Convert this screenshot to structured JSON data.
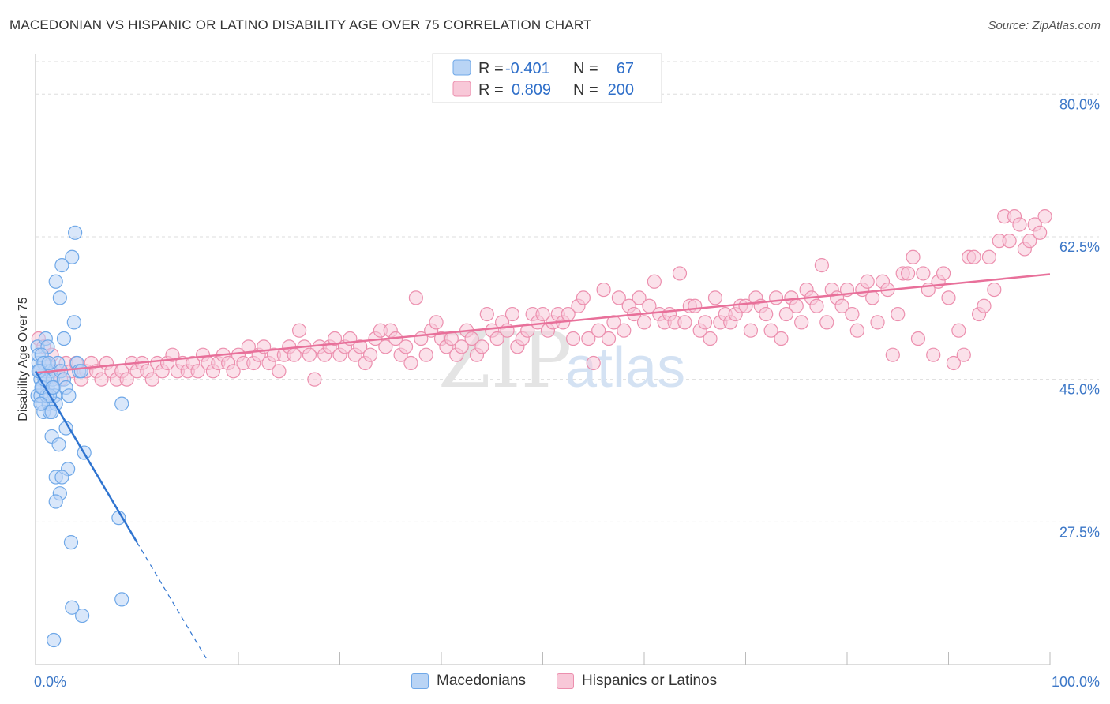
{
  "title": "MACEDONIAN VS HISPANIC OR LATINO DISABILITY AGE OVER 75 CORRELATION CHART",
  "source": "Source: ZipAtlas.com",
  "watermark": {
    "zip": "ZIP",
    "atlas": "atlas"
  },
  "chart_data": {
    "type": "scatter",
    "title": "MACEDONIAN VS HISPANIC OR LATINO DISABILITY AGE OVER 75 CORRELATION CHART",
    "xlabel": "",
    "ylabel": "Disability Age Over 75",
    "xlim": [
      0,
      100
    ],
    "ylim": [
      10,
      84
    ],
    "x_tick_labels": [
      "0.0%",
      "100.0%"
    ],
    "y_ticks": [
      27.5,
      45.0,
      62.5,
      80.0
    ],
    "y_tick_labels": [
      "27.5%",
      "45.0%",
      "62.5%",
      "80.0%"
    ],
    "grid": true,
    "legend_position": "top-center",
    "series": [
      {
        "name": "Macedonians",
        "color": "#6fa8e8",
        "fill": "#b9d4f5",
        "r": "-0.401",
        "n": "67",
        "trend": {
          "x": [
            0,
            10
          ],
          "y": [
            46.0,
            25.0
          ],
          "dashed_to": [
            17,
            10.4
          ]
        },
        "points": [
          [
            0.2,
            49
          ],
          [
            0.3,
            47
          ],
          [
            0.4,
            46
          ],
          [
            0.5,
            45
          ],
          [
            0.6,
            44
          ],
          [
            0.2,
            43
          ],
          [
            0.7,
            42
          ],
          [
            0.8,
            41
          ],
          [
            0.3,
            48
          ],
          [
            0.9,
            47
          ],
          [
            1.0,
            46
          ],
          [
            1.1,
            45
          ],
          [
            1.2,
            44
          ],
          [
            0.5,
            43
          ],
          [
            1.3,
            42
          ],
          [
            1.4,
            41
          ],
          [
            1.0,
            50
          ],
          [
            1.2,
            49
          ],
          [
            0.6,
            48
          ],
          [
            0.8,
            47
          ],
          [
            1.5,
            46
          ],
          [
            1.7,
            45
          ],
          [
            1.8,
            44
          ],
          [
            1.9,
            43
          ],
          [
            2.0,
            42
          ],
          [
            1.6,
            41
          ],
          [
            0.4,
            46
          ],
          [
            0.7,
            44
          ],
          [
            1.1,
            43
          ],
          [
            2.2,
            47
          ],
          [
            2.5,
            46
          ],
          [
            2.8,
            45
          ],
          [
            3.0,
            44
          ],
          [
            3.3,
            43
          ],
          [
            2.4,
            55
          ],
          [
            2.0,
            57
          ],
          [
            2.6,
            59
          ],
          [
            3.6,
            60
          ],
          [
            3.8,
            52
          ],
          [
            3.9,
            63
          ],
          [
            2.8,
            50
          ],
          [
            4.1,
            47
          ],
          [
            4.3,
            46
          ],
          [
            4.5,
            46
          ],
          [
            1.6,
            38
          ],
          [
            2.3,
            37
          ],
          [
            3.0,
            39
          ],
          [
            4.8,
            36
          ],
          [
            3.2,
            34
          ],
          [
            2.0,
            33
          ],
          [
            2.6,
            33
          ],
          [
            2.4,
            31
          ],
          [
            2.0,
            30
          ],
          [
            8.5,
            42
          ],
          [
            8.2,
            28
          ],
          [
            3.5,
            25
          ],
          [
            3.6,
            17
          ],
          [
            4.6,
            16
          ],
          [
            8.5,
            18
          ],
          [
            1.8,
            13
          ],
          [
            0.3,
            46
          ],
          [
            0.6,
            44
          ],
          [
            1.4,
            43
          ],
          [
            0.9,
            45
          ],
          [
            1.3,
            47
          ],
          [
            0.5,
            42
          ],
          [
            1.7,
            44
          ]
        ]
      },
      {
        "name": "Hispanics or Latinos",
        "color": "#ec8fae",
        "fill": "#f8c8d8",
        "r": "0.809",
        "n": "200",
        "trend": {
          "x": [
            0,
            100
          ],
          "y": [
            45.8,
            57.9
          ]
        },
        "points": [
          [
            0.3,
            50
          ],
          [
            0.8,
            49
          ],
          [
            1.2,
            47
          ],
          [
            1.6,
            48
          ],
          [
            2.2,
            46
          ],
          [
            2.5,
            45
          ],
          [
            3,
            47
          ],
          [
            3.5,
            46
          ],
          [
            4,
            47
          ],
          [
            4.5,
            45
          ],
          [
            5,
            46
          ],
          [
            5.5,
            47
          ],
          [
            6,
            46
          ],
          [
            6.5,
            45
          ],
          [
            7,
            47
          ],
          [
            7.5,
            46
          ],
          [
            8,
            45
          ],
          [
            8.5,
            46
          ],
          [
            9,
            45
          ],
          [
            9.5,
            47
          ],
          [
            10,
            46
          ],
          [
            10.5,
            47
          ],
          [
            11,
            46
          ],
          [
            11.5,
            45
          ],
          [
            12,
            47
          ],
          [
            12.5,
            46
          ],
          [
            13,
            47
          ],
          [
            13.5,
            48
          ],
          [
            14,
            46
          ],
          [
            14.5,
            47
          ],
          [
            15,
            46
          ],
          [
            15.5,
            47
          ],
          [
            16,
            46
          ],
          [
            16.5,
            48
          ],
          [
            17,
            47
          ],
          [
            17.5,
            46
          ],
          [
            18,
            47
          ],
          [
            18.5,
            48
          ],
          [
            19,
            47
          ],
          [
            19.5,
            46
          ],
          [
            20,
            48
          ],
          [
            20.5,
            47
          ],
          [
            21,
            49
          ],
          [
            21.5,
            47
          ],
          [
            22,
            48
          ],
          [
            22.5,
            49
          ],
          [
            23,
            47
          ],
          [
            23.5,
            48
          ],
          [
            24,
            46
          ],
          [
            24.5,
            48
          ],
          [
            25,
            49
          ],
          [
            25.5,
            48
          ],
          [
            26,
            51
          ],
          [
            26.5,
            49
          ],
          [
            27,
            48
          ],
          [
            27.5,
            45
          ],
          [
            28,
            49
          ],
          [
            28.5,
            48
          ],
          [
            29,
            49
          ],
          [
            29.5,
            50
          ],
          [
            30,
            48
          ],
          [
            30.5,
            49
          ],
          [
            31,
            50
          ],
          [
            31.5,
            48
          ],
          [
            32,
            49
          ],
          [
            32.5,
            47
          ],
          [
            33,
            48
          ],
          [
            33.5,
            50
          ],
          [
            34,
            51
          ],
          [
            34.5,
            49
          ],
          [
            35,
            51
          ],
          [
            35.5,
            50
          ],
          [
            36,
            48
          ],
          [
            36.5,
            49
          ],
          [
            37,
            47
          ],
          [
            37.5,
            55
          ],
          [
            38,
            50
          ],
          [
            38.5,
            48
          ],
          [
            39,
            51
          ],
          [
            39.5,
            52
          ],
          [
            40,
            50
          ],
          [
            40.5,
            49
          ],
          [
            41,
            50
          ],
          [
            41.5,
            48
          ],
          [
            42,
            49
          ],
          [
            42.5,
            51
          ],
          [
            43,
            50
          ],
          [
            43.5,
            48
          ],
          [
            44,
            49
          ],
          [
            44.5,
            53
          ],
          [
            45,
            51
          ],
          [
            45.5,
            50
          ],
          [
            46,
            52
          ],
          [
            46.5,
            51
          ],
          [
            47,
            53
          ],
          [
            47.5,
            49
          ],
          [
            48,
            50
          ],
          [
            48.5,
            51
          ],
          [
            49,
            53
          ],
          [
            49.5,
            52
          ],
          [
            50,
            53
          ],
          [
            50.5,
            51
          ],
          [
            51,
            52
          ],
          [
            51.5,
            53
          ],
          [
            52,
            52
          ],
          [
            52.5,
            53
          ],
          [
            53,
            50
          ],
          [
            53.5,
            54
          ],
          [
            54,
            55
          ],
          [
            54.5,
            50
          ],
          [
            55,
            47
          ],
          [
            55.5,
            51
          ],
          [
            56,
            56
          ],
          [
            56.5,
            50
          ],
          [
            57,
            52
          ],
          [
            57.5,
            55
          ],
          [
            58,
            51
          ],
          [
            58.5,
            54
          ],
          [
            59,
            53
          ],
          [
            59.5,
            55
          ],
          [
            60,
            52
          ],
          [
            60.5,
            54
          ],
          [
            61,
            57
          ],
          [
            61.5,
            53
          ],
          [
            62,
            52
          ],
          [
            62.5,
            53
          ],
          [
            63,
            52
          ],
          [
            63.5,
            58
          ],
          [
            64,
            52
          ],
          [
            64.5,
            54
          ],
          [
            65,
            54
          ],
          [
            65.5,
            51
          ],
          [
            66,
            52
          ],
          [
            66.5,
            50
          ],
          [
            67,
            55
          ],
          [
            67.5,
            52
          ],
          [
            68,
            53
          ],
          [
            68.5,
            52
          ],
          [
            69,
            53
          ],
          [
            69.5,
            54
          ],
          [
            70,
            54
          ],
          [
            70.5,
            51
          ],
          [
            71,
            55
          ],
          [
            71.5,
            54
          ],
          [
            72,
            53
          ],
          [
            72.5,
            51
          ],
          [
            73,
            55
          ],
          [
            73.5,
            50
          ],
          [
            74,
            53
          ],
          [
            74.5,
            55
          ],
          [
            75,
            54
          ],
          [
            75.5,
            52
          ],
          [
            76,
            56
          ],
          [
            76.5,
            55
          ],
          [
            77,
            54
          ],
          [
            77.5,
            59
          ],
          [
            78,
            52
          ],
          [
            78.5,
            56
          ],
          [
            79,
            55
          ],
          [
            79.5,
            54
          ],
          [
            80,
            56
          ],
          [
            80.5,
            53
          ],
          [
            81,
            51
          ],
          [
            81.5,
            56
          ],
          [
            82,
            57
          ],
          [
            82.5,
            55
          ],
          [
            83,
            52
          ],
          [
            83.5,
            57
          ],
          [
            84,
            56
          ],
          [
            84.5,
            48
          ],
          [
            85,
            53
          ],
          [
            85.5,
            58
          ],
          [
            86,
            58
          ],
          [
            86.5,
            60
          ],
          [
            87,
            50
          ],
          [
            87.5,
            58
          ],
          [
            88,
            56
          ],
          [
            88.5,
            48
          ],
          [
            89,
            57
          ],
          [
            89.5,
            58
          ],
          [
            90,
            55
          ],
          [
            90.5,
            47
          ],
          [
            91,
            51
          ],
          [
            91.5,
            48
          ],
          [
            92,
            60
          ],
          [
            92.5,
            60
          ],
          [
            93,
            53
          ],
          [
            93.5,
            54
          ],
          [
            94,
            60
          ],
          [
            94.5,
            56
          ],
          [
            95,
            62
          ],
          [
            95.5,
            65
          ],
          [
            96,
            62
          ],
          [
            96.5,
            65
          ],
          [
            97,
            64
          ],
          [
            97.5,
            61
          ],
          [
            98,
            62
          ],
          [
            98.5,
            64
          ],
          [
            99,
            63
          ],
          [
            99.5,
            65
          ]
        ]
      }
    ]
  }
}
